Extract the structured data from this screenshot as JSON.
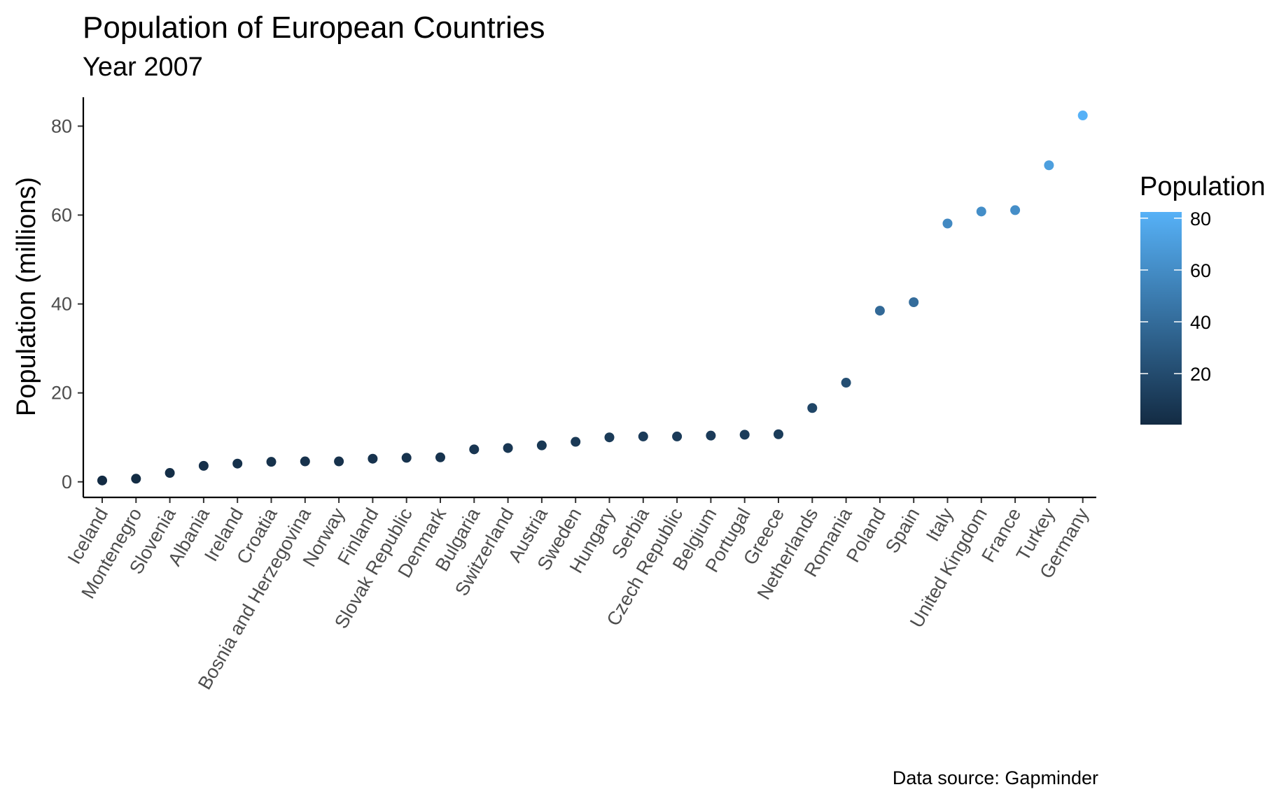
{
  "chart_data": {
    "type": "scatter",
    "title": "Population of European Countries",
    "subtitle": "Year 2007",
    "xlabel": "",
    "ylabel": "Population (millions)",
    "caption": "Data source: Gapminder",
    "categories": [
      "Iceland",
      "Montenegro",
      "Slovenia",
      "Albania",
      "Ireland",
      "Croatia",
      "Bosnia and Herzegovina",
      "Norway",
      "Finland",
      "Slovak Republic",
      "Denmark",
      "Bulgaria",
      "Switzerland",
      "Austria",
      "Sweden",
      "Hungary",
      "Serbia",
      "Czech Republic",
      "Belgium",
      "Portugal",
      "Greece",
      "Netherlands",
      "Romania",
      "Poland",
      "Spain",
      "Italy",
      "United Kingdom",
      "France",
      "Turkey",
      "Germany"
    ],
    "values": [
      0.3,
      0.7,
      2.0,
      3.6,
      4.1,
      4.5,
      4.6,
      4.6,
      5.2,
      5.4,
      5.5,
      7.3,
      7.6,
      8.2,
      9.0,
      10.0,
      10.2,
      10.2,
      10.4,
      10.6,
      10.7,
      16.6,
      22.3,
      38.5,
      40.4,
      58.1,
      60.8,
      61.1,
      71.2,
      82.4
    ],
    "ylim": [
      -3.5,
      86.5
    ],
    "yticks": [
      0,
      20,
      40,
      60,
      80
    ],
    "grid": false,
    "legend": {
      "title": "Population",
      "type": "colorbar",
      "placement": "right",
      "ticks": [
        20,
        40,
        60,
        80
      ],
      "range": [
        0.3,
        82.4
      ],
      "color_low": "#132B43",
      "color_high": "#56B1F7"
    }
  }
}
